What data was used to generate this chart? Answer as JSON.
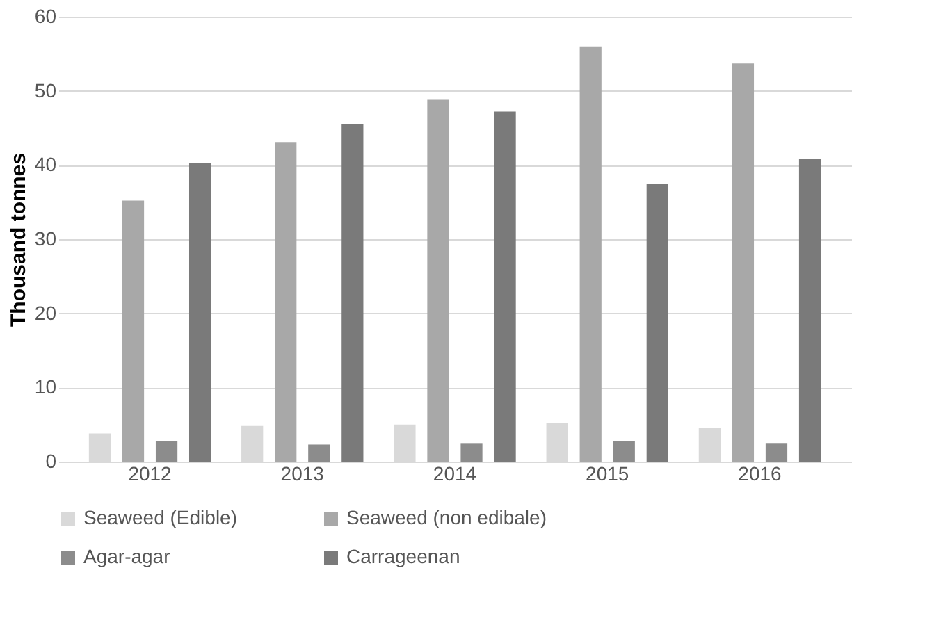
{
  "chart_data": {
    "type": "bar",
    "ylabel": "Thousand tonnes",
    "categories": [
      "2012",
      "2013",
      "2014",
      "2015",
      "2016"
    ],
    "series": [
      {
        "name": "Seaweed (Edible)",
        "color": "#d9d9d9",
        "values": [
          3.8,
          4.8,
          5.0,
          5.2,
          4.6
        ]
      },
      {
        "name": "Seaweed (non edibale)",
        "color": "#a8a8a8",
        "values": [
          35.2,
          43.1,
          48.8,
          56.0,
          53.7
        ]
      },
      {
        "name": "Agar-agar",
        "color": "#8c8c8c",
        "values": [
          2.8,
          2.3,
          2.5,
          2.8,
          2.5
        ]
      },
      {
        "name": "Carrageenan",
        "color": "#7a7a7a",
        "values": [
          40.3,
          45.5,
          47.2,
          37.4,
          40.8
        ]
      }
    ],
    "ylim": [
      0,
      60
    ],
    "yticks": [
      0,
      10,
      20,
      30,
      40,
      50,
      60
    ],
    "grid": "y",
    "legend": "bottom"
  }
}
